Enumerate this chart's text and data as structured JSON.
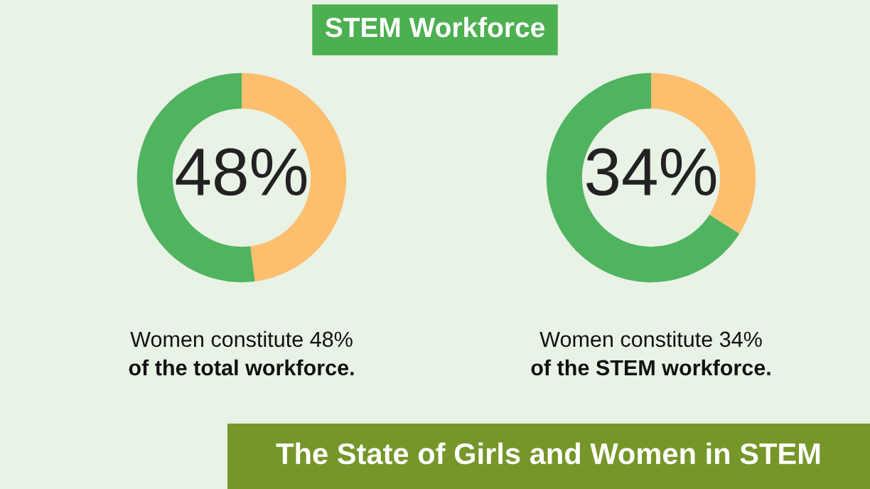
{
  "chart_data": [
    {
      "type": "donut",
      "title": "STEM Workforce",
      "categories": [
        null,
        null
      ],
      "values": [
        48,
        52
      ],
      "colors": [
        "#fdbe6e",
        "#4fb35f"
      ],
      "value_labels": [
        "48%",
        null
      ],
      "annotations": [
        "Women constitute 48%",
        "of the total workforce."
      ]
    },
    {
      "type": "donut",
      "categories": [
        null,
        null
      ],
      "values": [
        34,
        66
      ],
      "colors": [
        "#fdbe6e",
        "#4fb35f"
      ],
      "value_labels": [
        "34%",
        null
      ],
      "annotations": [
        "Women constitute 34%",
        "of the STEM workforce."
      ]
    },
    {
      "type": "other",
      "annotations": [
        "The State of Girls and Women in STEM"
      ]
    }
  ]
}
